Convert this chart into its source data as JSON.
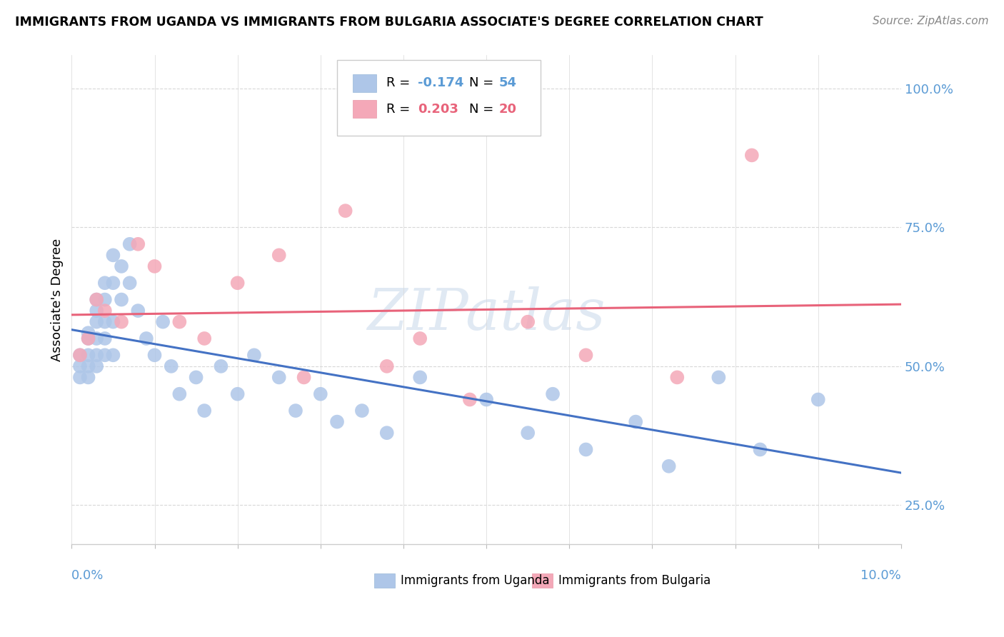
{
  "title": "IMMIGRANTS FROM UGANDA VS IMMIGRANTS FROM BULGARIA ASSOCIATE'S DEGREE CORRELATION CHART",
  "source": "Source: ZipAtlas.com",
  "ylabel": "Associate's Degree",
  "ylabel_right_ticks": [
    "25.0%",
    "50.0%",
    "75.0%",
    "100.0%"
  ],
  "ylabel_right_vals": [
    0.25,
    0.5,
    0.75,
    1.0
  ],
  "xlim": [
    0.0,
    0.1
  ],
  "ylim": [
    0.18,
    1.06
  ],
  "uganda_color": "#aec6e8",
  "bulgaria_color": "#f4a8b8",
  "uganda_line_color": "#4472c4",
  "bulgaria_line_color": "#e8637a",
  "watermark_text": "ZIPatlas",
  "R_uganda": -0.174,
  "N_uganda": 54,
  "R_bulgaria": 0.203,
  "N_bulgaria": 20,
  "uganda_x": [
    0.001,
    0.001,
    0.001,
    0.002,
    0.002,
    0.002,
    0.002,
    0.002,
    0.003,
    0.003,
    0.003,
    0.003,
    0.003,
    0.003,
    0.004,
    0.004,
    0.004,
    0.004,
    0.004,
    0.005,
    0.005,
    0.005,
    0.005,
    0.006,
    0.006,
    0.007,
    0.007,
    0.008,
    0.009,
    0.01,
    0.011,
    0.012,
    0.013,
    0.015,
    0.016,
    0.018,
    0.02,
    0.022,
    0.025,
    0.027,
    0.03,
    0.032,
    0.035,
    0.038,
    0.042,
    0.05,
    0.055,
    0.058,
    0.062,
    0.068,
    0.072,
    0.078,
    0.083,
    0.09
  ],
  "uganda_y": [
    0.52,
    0.5,
    0.48,
    0.56,
    0.55,
    0.52,
    0.5,
    0.48,
    0.62,
    0.6,
    0.58,
    0.55,
    0.52,
    0.5,
    0.65,
    0.62,
    0.58,
    0.55,
    0.52,
    0.7,
    0.65,
    0.58,
    0.52,
    0.68,
    0.62,
    0.72,
    0.65,
    0.6,
    0.55,
    0.52,
    0.58,
    0.5,
    0.45,
    0.48,
    0.42,
    0.5,
    0.45,
    0.52,
    0.48,
    0.42,
    0.45,
    0.4,
    0.42,
    0.38,
    0.48,
    0.44,
    0.38,
    0.45,
    0.35,
    0.4,
    0.32,
    0.48,
    0.35,
    0.44
  ],
  "bulgaria_x": [
    0.001,
    0.002,
    0.003,
    0.004,
    0.006,
    0.008,
    0.01,
    0.013,
    0.016,
    0.02,
    0.025,
    0.028,
    0.033,
    0.038,
    0.042,
    0.048,
    0.055,
    0.062,
    0.073,
    0.082
  ],
  "bulgaria_y": [
    0.52,
    0.55,
    0.62,
    0.6,
    0.58,
    0.72,
    0.68,
    0.58,
    0.55,
    0.65,
    0.7,
    0.48,
    0.78,
    0.5,
    0.55,
    0.44,
    0.58,
    0.52,
    0.48,
    0.88
  ],
  "grid_color": "#d8d8d8",
  "background_color": "#ffffff",
  "legend_border_color": "#cccccc",
  "right_label_color": "#5b9bd5",
  "uganda_r_color": "#5b9bd5",
  "bulgaria_r_color": "#e8637a"
}
